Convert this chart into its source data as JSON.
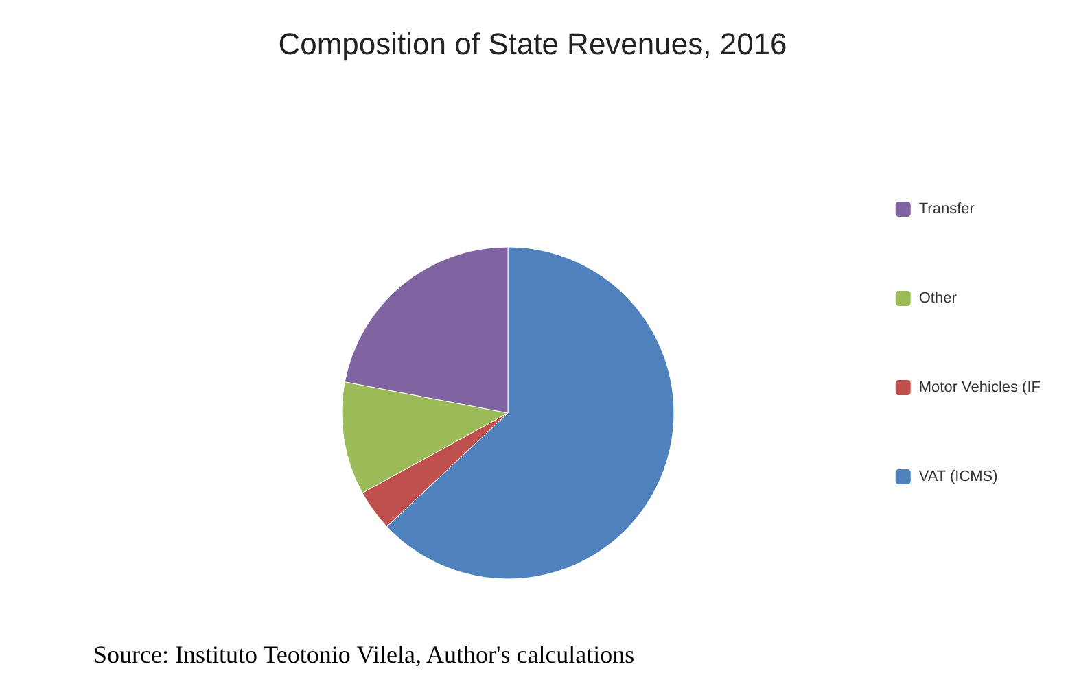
{
  "chart_data": {
    "type": "pie",
    "title": "Composition of State Revenues, 2016",
    "categories": [
      "VAT (ICMS)",
      "Motor Vehicles (IF",
      "Other",
      "Transfer"
    ],
    "values": [
      63,
      4,
      11,
      22
    ],
    "colors": [
      "#4f81bd",
      "#c0504d",
      "#9bbb59",
      "#8064a2"
    ],
    "legend": "right",
    "annotations": [
      "Source: Instituto Teotonio Vilela, Author's calculations"
    ]
  }
}
